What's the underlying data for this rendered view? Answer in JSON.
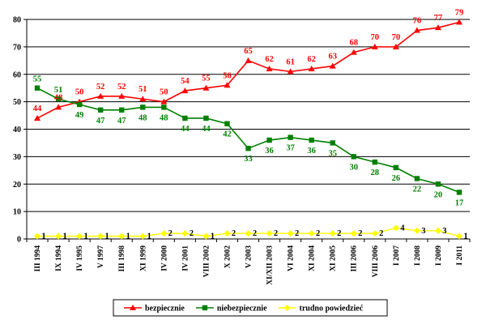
{
  "chart_data": {
    "type": "line",
    "title": "",
    "xlabel": "",
    "ylabel": "",
    "ylim": [
      0,
      80
    ],
    "yticks": [
      0,
      10,
      20,
      30,
      40,
      50,
      60,
      70,
      80
    ],
    "grid": "horizontal",
    "legend_position": "bottom",
    "categories": [
      "III 1994",
      "IX 1994",
      "IV 1995",
      "V 1997",
      "III 1998",
      "XI 1999",
      "IV 2000",
      "IV 2001",
      "VIII 2002",
      "X 2002",
      "V 2003",
      "XI/XII 2003",
      "VI 2004",
      "XI 2004",
      "XI 2005",
      "III 2006",
      "VIII 2006",
      "I 2007",
      "I 2008",
      "I 2009",
      "I 2011"
    ],
    "series": [
      {
        "name": "bezpiecznie",
        "color": "#ff0000",
        "marker": "triangle",
        "values": [
          44,
          48,
          50,
          52,
          52,
          51,
          50,
          54,
          55,
          56,
          65,
          62,
          61,
          62,
          63,
          68,
          70,
          70,
          76,
          77,
          79
        ]
      },
      {
        "name": "niebezpiecznie",
        "color": "#008000",
        "marker": "square",
        "values": [
          55,
          51,
          49,
          47,
          47,
          48,
          48,
          44,
          44,
          42,
          33,
          36,
          37,
          36,
          35,
          30,
          28,
          26,
          22,
          20,
          17
        ]
      },
      {
        "name": "trudno powiedzieć",
        "color": "#ffff00",
        "marker": "diamond",
        "values": [
          1,
          1,
          1,
          1,
          1,
          1,
          2,
          2,
          1,
          2,
          2,
          2,
          2,
          2,
          2,
          2,
          2,
          4,
          3,
          3,
          1
        ]
      }
    ]
  }
}
